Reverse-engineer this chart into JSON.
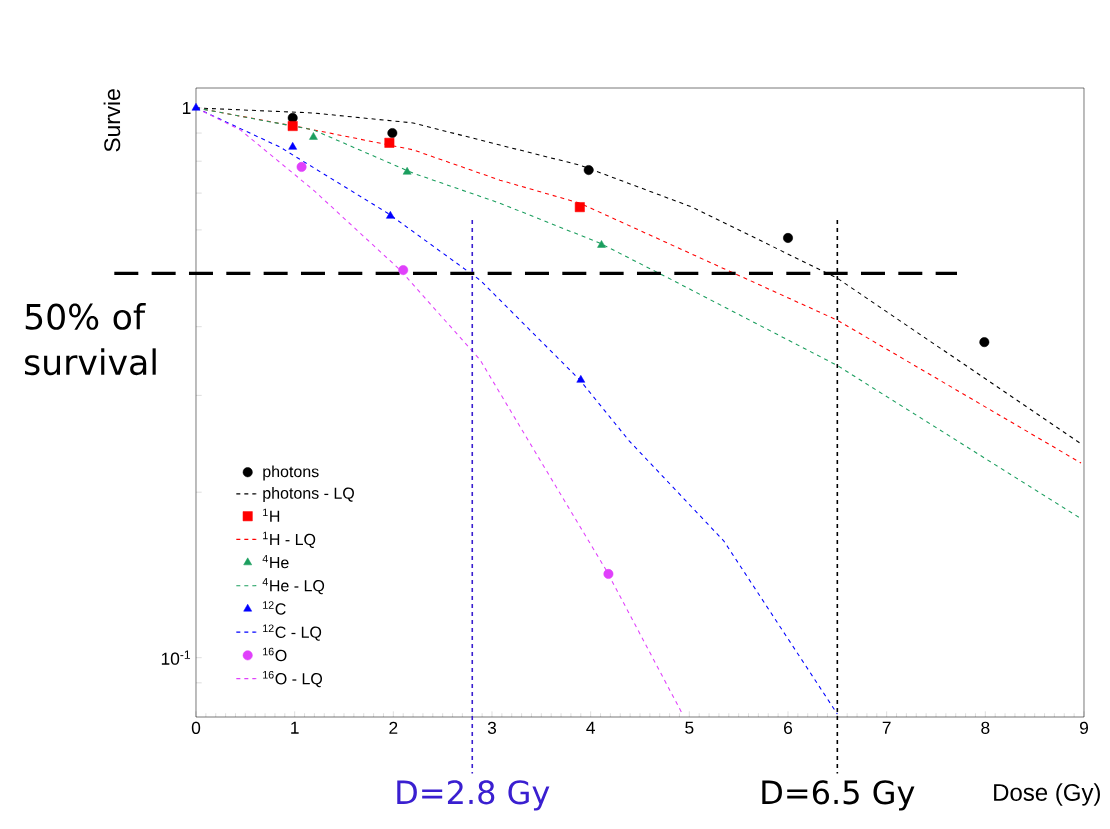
{
  "chart_data": {
    "type": "line",
    "xlabel": "Dose (Gy)",
    "ylabel": "Survie",
    "log": "y",
    "xlim": [
      0,
      9
    ],
    "ylim": [
      0.078,
      1.087
    ],
    "xticks": [
      0,
      1,
      2,
      3,
      4,
      5,
      6,
      7,
      8,
      9
    ],
    "yticks": [
      {
        "value": 0.09,
        "label": null
      },
      {
        "value": 0.1,
        "label": "10$^{-1}$"
      },
      {
        "value": 0.2,
        "label": null
      },
      {
        "value": 0.3,
        "label": null
      },
      {
        "value": 0.4,
        "label": null
      },
      {
        "value": 0.5,
        "label": null
      },
      {
        "value": 0.6,
        "label": null
      },
      {
        "value": 0.7,
        "label": null
      },
      {
        "value": 0.8,
        "label": null
      },
      {
        "value": 0.9,
        "label": null
      },
      {
        "value": 1,
        "label": "1"
      }
    ],
    "legend": "bottom left",
    "series": [
      {
        "name": "photons",
        "type": "scatter",
        "marker": "circle",
        "color": "#000000",
        "x": [
          0.98,
          1.99,
          3.98,
          6.0,
          7.99
        ],
        "values": [
          0.959,
          0.9,
          0.771,
          0.58,
          0.375
        ]
      },
      {
        "name": "photons - LQ",
        "line_style": "dashed",
        "marker": "none",
        "color": "#000000",
        "x": [
          0,
          1.19,
          2.2,
          3.08,
          3.89,
          5.03,
          6.5,
          8.97
        ],
        "values": [
          1,
          0.979,
          0.939,
          0.856,
          0.787,
          0.66,
          0.49,
          0.245
        ]
      },
      {
        "name": "$^{1}$H",
        "type": "scatter",
        "marker": "square",
        "color": "#ff0000",
        "x": [
          0.98,
          1.96,
          3.89
        ],
        "values": [
          0.927,
          0.864,
          0.66
        ]
      },
      {
        "name": "$^{1}$H - LQ",
        "line_style": "dashed",
        "marker": "none",
        "color": "#ff0000",
        "x": [
          0,
          1.05,
          2.2,
          3.08,
          3.89,
          6.5,
          8.97
        ],
        "values": [
          1,
          0.923,
          0.839,
          0.739,
          0.671,
          0.411,
          0.226
        ]
      },
      {
        "name": "$^{4}$He",
        "type": "scatter",
        "marker": "triangle",
        "color": "#1b9e5e",
        "x": [
          1.19,
          2.14,
          4.11
        ],
        "values": [
          0.885,
          0.765,
          0.563
        ]
      },
      {
        "name": "$^{4}$He - LQ",
        "line_style": "dashed",
        "marker": "none",
        "color": "#1b9e5e",
        "x": [
          0,
          1.19,
          2.2,
          3.08,
          4.09,
          4.83,
          6.5,
          8.97
        ],
        "values": [
          1,
          0.912,
          0.761,
          0.671,
          0.568,
          0.486,
          0.34,
          0.179
        ]
      },
      {
        "name": "$^{12}$C",
        "type": "scatter",
        "marker": "triangle",
        "color": "#0000ff",
        "x": [
          0,
          0.98,
          1.97,
          3.9
        ],
        "values": [
          1,
          0.849,
          0.636,
          0.32
        ]
      },
      {
        "name": "$^{12}$C - LQ",
        "line_style": "dashed",
        "marker": "none",
        "color": "#0000ff",
        "x": [
          0,
          0.85,
          1.94,
          2.88,
          3.89,
          4.39,
          5.35,
          6.5
        ],
        "values": [
          1,
          0.849,
          0.644,
          0.486,
          0.32,
          0.248,
          0.163,
          0.079
        ]
      },
      {
        "name": "$^{16}$O",
        "type": "scatter",
        "marker": "circle",
        "color": "#e040fb",
        "x": [
          1.07,
          2.1,
          4.18
        ],
        "values": [
          0.781,
          0.507,
          0.142
        ]
      },
      {
        "name": "$^{16}$O - LQ",
        "line_style": "dashed",
        "marker": "none",
        "color": "#e040fb",
        "x": [
          0,
          0.45,
          1.19,
          2.07,
          2.88,
          3.37,
          4.16,
          4.93
        ],
        "values": [
          1,
          0.912,
          0.709,
          0.507,
          0.348,
          0.248,
          0.144,
          0.079
        ]
      }
    ],
    "ref_lines": [
      {
        "axis": "y",
        "value": 0.5,
        "label": "50% of survival",
        "color": "#000000",
        "line_style": "dashed"
      },
      {
        "axis": "x",
        "value": 2.8,
        "label": "D=2.8 Gy",
        "color": "#3a1fd0",
        "line_style": "dashed"
      },
      {
        "axis": "x",
        "value": 6.5,
        "label": "D=6.5 Gy",
        "color": "#000000",
        "line_style": "dashed"
      }
    ]
  }
}
